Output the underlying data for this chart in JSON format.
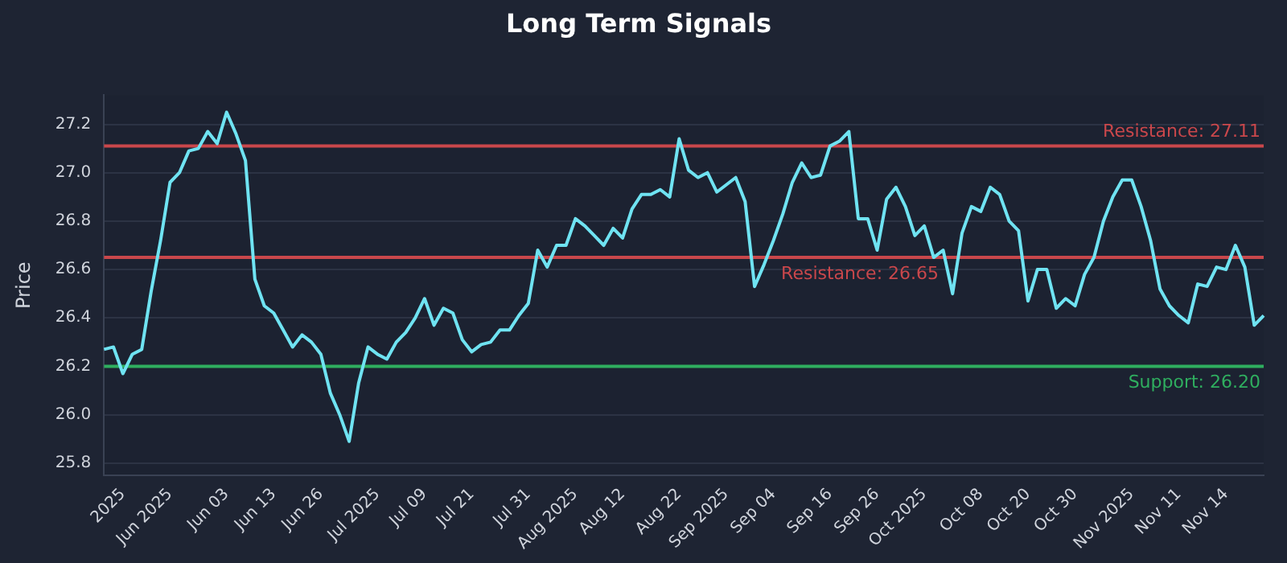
{
  "chart_data": {
    "type": "line",
    "title": "Long Term Signals",
    "ylabel": "Price",
    "categories": [
      null,
      null,
      "2025",
      null,
      null,
      null,
      null,
      "Jun 2025",
      null,
      null,
      null,
      null,
      null,
      "Jun 03",
      null,
      null,
      null,
      null,
      "Jun 13",
      null,
      null,
      null,
      null,
      "Jun 26",
      null,
      null,
      null,
      null,
      null,
      "Jul 2025",
      null,
      null,
      null,
      null,
      "Jul 09",
      null,
      null,
      null,
      null,
      "Jul 21",
      null,
      null,
      null,
      null,
      null,
      "Jul 31",
      null,
      null,
      null,
      null,
      "Aug 2025",
      null,
      null,
      null,
      null,
      "Aug 12",
      null,
      null,
      null,
      null,
      null,
      "Aug 22",
      null,
      null,
      null,
      null,
      "Sep 2025",
      null,
      null,
      null,
      null,
      "Sep 04",
      null,
      null,
      null,
      null,
      null,
      "Sep 16",
      null,
      null,
      null,
      null,
      "Sep 26",
      null,
      null,
      null,
      null,
      "Oct 2025",
      null,
      null,
      null,
      null,
      null,
      "Oct 08",
      null,
      null,
      null,
      null,
      "Oct 20",
      null,
      null,
      null,
      null,
      "Oct 30",
      null,
      null,
      null,
      null,
      null,
      "Nov 2025",
      null,
      null,
      null,
      null,
      "Nov 11",
      null,
      null,
      null,
      null,
      "Nov 14",
      null,
      null,
      null,
      null
    ],
    "series": [
      {
        "color": "#6fe3f2",
        "values": [
          26.27,
          26.28,
          26.17,
          26.25,
          26.27,
          26.51,
          26.72,
          26.96,
          27.0,
          27.09,
          27.1,
          27.17,
          27.12,
          27.25,
          27.16,
          27.05,
          26.56,
          26.45,
          26.42,
          26.35,
          26.28,
          26.33,
          26.3,
          26.25,
          26.09,
          26.0,
          25.89,
          26.13,
          26.28,
          26.25,
          26.23,
          26.3,
          26.34,
          26.4,
          26.48,
          26.37,
          26.44,
          26.42,
          26.31,
          26.26,
          26.29,
          26.3,
          26.35,
          26.35,
          26.41,
          26.46,
          26.68,
          26.61,
          26.7,
          26.7,
          26.81,
          26.78,
          26.74,
          26.7,
          26.77,
          26.73,
          26.85,
          26.91,
          26.91,
          26.93,
          26.9,
          27.14,
          27.01,
          26.98,
          27.0,
          26.92,
          26.95,
          26.98,
          26.88,
          26.53,
          26.62,
          26.72,
          26.83,
          26.96,
          27.04,
          26.98,
          26.99,
          27.11,
          27.13,
          27.17,
          26.81,
          26.81,
          26.68,
          26.89,
          26.94,
          26.86,
          26.74,
          26.78,
          26.65,
          26.68,
          26.5,
          26.75,
          26.86,
          26.84,
          26.94,
          26.91,
          26.8,
          26.76,
          26.47,
          26.6,
          26.6,
          26.44,
          26.48,
          26.45,
          26.58,
          26.65,
          26.8,
          26.9,
          26.97,
          26.97,
          26.86,
          26.72,
          26.52,
          26.45,
          26.41,
          26.38,
          26.54,
          26.53,
          26.61,
          26.6,
          26.7,
          26.61,
          26.37,
          26.41
        ]
      }
    ],
    "ylim": [
      25.75,
      27.32
    ],
    "yticks": [
      25.8,
      {
        "value": 26,
        "label": "26.0"
      },
      26.2,
      26.4,
      26.6,
      26.8,
      {
        "value": 27,
        "label": "27.0"
      },
      27.2
    ],
    "ref_lines": [
      {
        "axis": "y",
        "value": 27.11,
        "label": "Resistance: 27.11",
        "color": "#c9474b"
      },
      {
        "axis": "y",
        "value": 26.65,
        "label": "Resistance: 26.65",
        "color": "#c9474b"
      },
      {
        "axis": "y",
        "value": 26.2,
        "label": "Support: 26.20",
        "color": "#2fae5f"
      }
    ],
    "grid": "y",
    "legend": false,
    "marker": "none",
    "line_style": "solid"
  }
}
